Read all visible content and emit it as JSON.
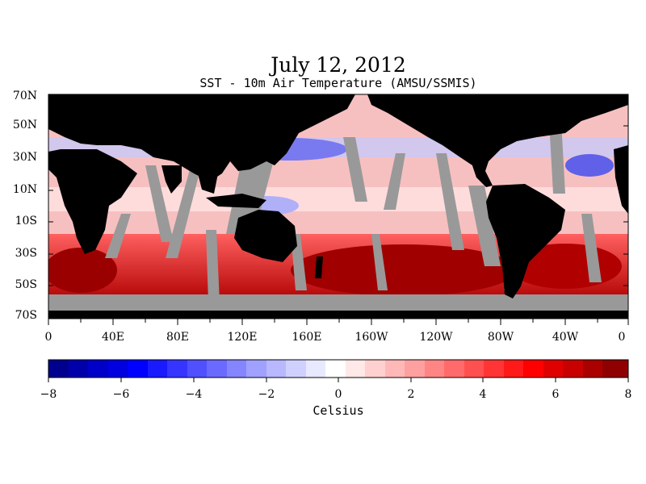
{
  "title": "July 12, 2012",
  "subtitle": "SST - 10m Air Temperature (AMSU/SSMIS)",
  "lat_labels": [
    "70N",
    "50N",
    "30N",
    "10N",
    "10S",
    "30S",
    "50S",
    "70S"
  ],
  "lon_labels": [
    "0",
    "40E",
    "80E",
    "120E",
    "160E",
    "160W",
    "120W",
    "80W",
    "40W",
    "0"
  ],
  "colorbar": {
    "ticks": [
      "−8",
      "−6",
      "−4",
      "−2",
      "0",
      "2",
      "4",
      "6",
      "8"
    ],
    "units": "Celsius",
    "range": [
      -8,
      8
    ]
  },
  "colors": {
    "land": "#000000",
    "missing": "#999999",
    "cold": "#0000aa",
    "neutral": "#ffffff",
    "warm": "#880000"
  }
}
